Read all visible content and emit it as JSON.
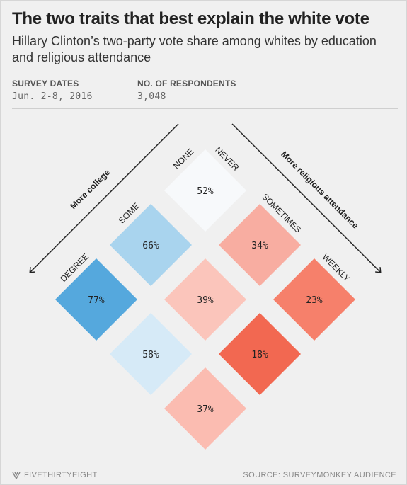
{
  "header": {
    "title": "The two traits that best explain the white vote",
    "subtitle": "Hillary Clinton’s two-party vote share among whites by education and religious attendance"
  },
  "meta": {
    "dates_label": "SURVEY DATES",
    "dates_value": "Jun. 2-8, 2016",
    "respondents_label": "NO. OF RESPONDENTS",
    "respondents_value": "3,048"
  },
  "footer": {
    "logo_text": "FIVETHIRTYEIGHT",
    "source": "SOURCE: SURVEYMONKEY AUDIENCE"
  },
  "chart_data": {
    "type": "heatmap",
    "title": "The two traits that best explain the white vote",
    "subtitle": "Hillary Clinton’s two-party vote share among whites by education and religious attendance",
    "education_axis": {
      "label": "More college",
      "categories": [
        "NONE",
        "SOME",
        "DEGREE"
      ]
    },
    "religion_axis": {
      "label": "More religious attendance",
      "categories": [
        "NEVER",
        "SOMETIMES",
        "WEEKLY"
      ]
    },
    "cells": [
      {
        "education": "NONE",
        "religion": "NEVER",
        "value": 52,
        "label": "52%",
        "color": "#f7f9fb"
      },
      {
        "education": "SOME",
        "religion": "NEVER",
        "value": 66,
        "label": "66%",
        "color": "#a9d4ee"
      },
      {
        "education": "DEGREE",
        "religion": "NEVER",
        "value": 77,
        "label": "77%",
        "color": "#55a8dd"
      },
      {
        "education": "NONE",
        "religion": "SOMETIMES",
        "value": 34,
        "label": "34%",
        "color": "#f8ada1"
      },
      {
        "education": "SOME",
        "religion": "SOMETIMES",
        "value": 39,
        "label": "39%",
        "color": "#fbc5bb"
      },
      {
        "education": "DEGREE",
        "religion": "SOMETIMES",
        "value": 58,
        "label": "58%",
        "color": "#d6eaf7"
      },
      {
        "education": "NONE",
        "religion": "WEEKLY",
        "value": 23,
        "label": "23%",
        "color": "#f6806b"
      },
      {
        "education": "SOME",
        "religion": "WEEKLY",
        "value": 18,
        "label": "18%",
        "color": "#f26851"
      },
      {
        "education": "DEGREE",
        "religion": "WEEKLY",
        "value": 37,
        "label": "37%",
        "color": "#fbbcb1"
      }
    ]
  }
}
